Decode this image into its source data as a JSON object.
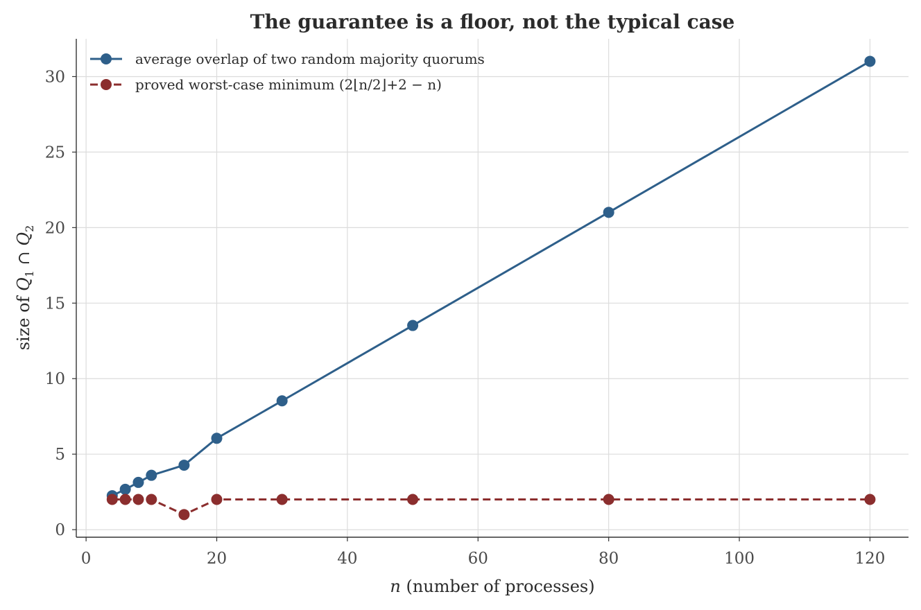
{
  "chart_data": {
    "type": "line",
    "title": "The guarantee is a floor, not the typical case",
    "xlabel": "n (number of processes)",
    "ylabel": "size of Q1 ∩ Q2",
    "xlim": [
      -1.5,
      125.9
    ],
    "ylim": [
      -0.5,
      32.5
    ],
    "xticks": [
      0,
      20,
      40,
      60,
      80,
      100,
      120
    ],
    "yticks": [
      0,
      5,
      10,
      15,
      20,
      25,
      30
    ],
    "grid": true,
    "legend_position": "top-left",
    "series": [
      {
        "name": "average overlap of two random majority quorums",
        "color": "#2e5f8a",
        "line_style": "solid",
        "marker": "circle",
        "x": [
          4,
          6,
          8,
          10,
          15,
          20,
          30,
          50,
          80,
          120
        ],
        "y": [
          2.25,
          2.67,
          3.13,
          3.6,
          4.27,
          6.05,
          8.53,
          13.52,
          21.01,
          31.01
        ]
      },
      {
        "name": "proved worst-case minimum (2⌊n/2⌋+2 − n)",
        "color": "#8b2e2e",
        "line_style": "dashed",
        "marker": "circle",
        "x": [
          4,
          6,
          8,
          10,
          15,
          20,
          30,
          50,
          80,
          120
        ],
        "y": [
          2,
          2,
          2,
          2,
          1,
          2,
          2,
          2,
          2,
          2
        ]
      }
    ]
  }
}
